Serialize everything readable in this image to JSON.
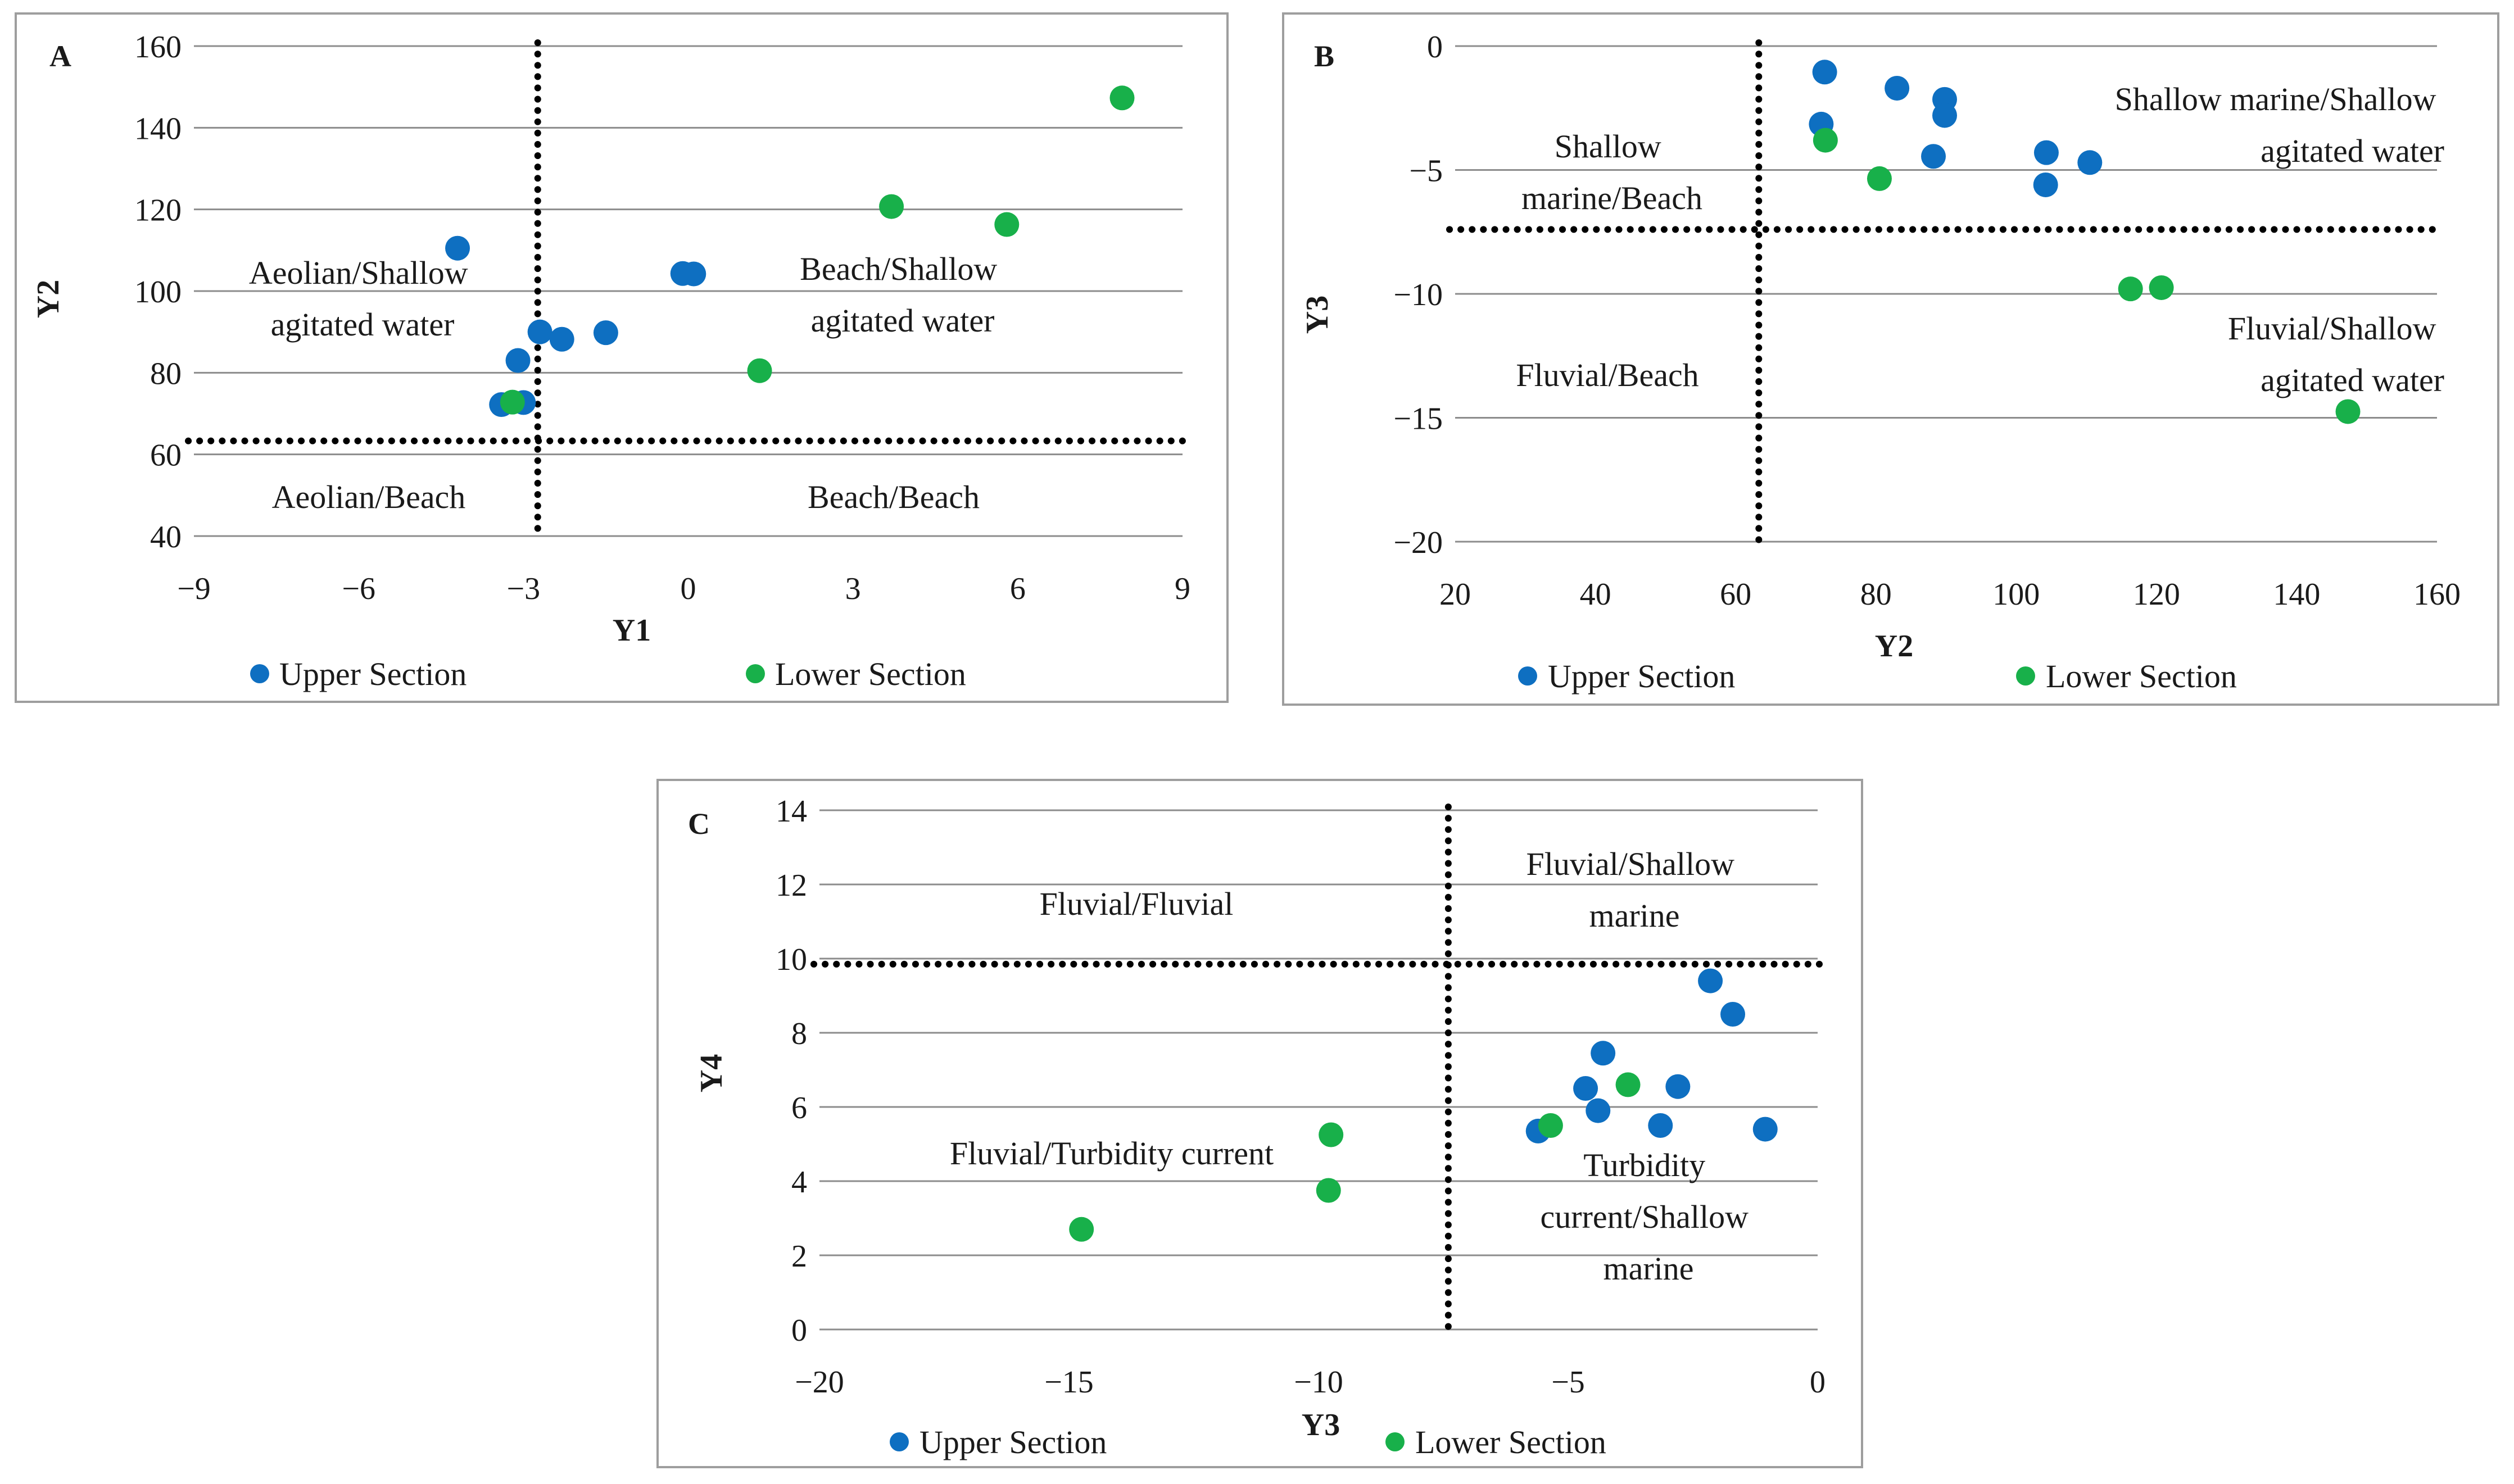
{
  "colors": {
    "upper": "#0E6FC1",
    "lower": "#18B04A",
    "grid": "#8C8C8C",
    "frame": "#9E9E9E",
    "divider": "#000000",
    "text": "#1a1a1a"
  },
  "chart_data": [
    {
      "id": "A",
      "panel_label": "A",
      "type": "scatter",
      "xlabel": "Y1",
      "ylabel": "Y2",
      "xlim": [
        -9,
        9
      ],
      "ylim": [
        40,
        160
      ],
      "xticks": [
        -9,
        -6,
        -3,
        0,
        3,
        6,
        9
      ],
      "yticks": [
        40,
        60,
        80,
        100,
        120,
        140,
        160
      ],
      "xtick_labels": [
        "−9",
        "−6",
        "−3",
        "0",
        "3",
        "6",
        "9"
      ],
      "ytick_labels": [
        "40",
        "60",
        "80",
        "100",
        "120",
        "140",
        "160"
      ],
      "grid": "horizontal",
      "dividers": {
        "x": -2.74,
        "y": 63.3
      },
      "series": [
        {
          "name": "Upper Section",
          "color_key": "upper",
          "points": [
            [
              -4.2,
              110.5
            ],
            [
              -3.1,
              83
            ],
            [
              -3.4,
              72.2
            ],
            [
              -3.0,
              72.7
            ],
            [
              -2.7,
              90
            ],
            [
              -2.3,
              88.2
            ],
            [
              -1.5,
              89.8
            ],
            [
              -0.1,
              104.3
            ],
            [
              0.1,
              104.2
            ]
          ]
        },
        {
          "name": "Lower Section",
          "color_key": "lower",
          "points": [
            [
              -3.2,
              72.8
            ],
            [
              1.3,
              80.5
            ],
            [
              3.7,
              120.7
            ],
            [
              5.8,
              116.3
            ],
            [
              7.9,
              147.3
            ]
          ]
        }
      ],
      "region_labels": [
        {
          "lines": [
            "Aeolian/Shallow",
            "agitated water"
          ]
        },
        {
          "lines": [
            "Beach/Shallow",
            "agitated water"
          ]
        },
        {
          "lines": [
            "Aeolian/Beach"
          ]
        },
        {
          "lines": [
            "Beach/Beach"
          ]
        }
      ],
      "legend": {
        "placement": "bottom",
        "entries": [
          "Upper Section",
          "Lower Section"
        ]
      }
    },
    {
      "id": "B",
      "panel_label": "B",
      "type": "scatter",
      "xlabel": "Y2",
      "ylabel": "Y3",
      "xlim": [
        20,
        160
      ],
      "ylim": [
        -20,
        0
      ],
      "xticks": [
        20,
        40,
        60,
        80,
        100,
        120,
        140,
        160
      ],
      "yticks": [
        -20,
        -15,
        -10,
        -5,
        0
      ],
      "xtick_labels": [
        "20",
        "40",
        "60",
        "80",
        "100",
        "120",
        "140",
        "160"
      ],
      "ytick_labels": [
        "−20",
        "−15",
        "−10",
        "−5",
        "0"
      ],
      "grid": "horizontal",
      "dividers": {
        "x": 63.3,
        "y": -7.4
      },
      "series": [
        {
          "name": "Upper Section",
          "color_key": "upper",
          "points": [
            [
              72.7,
              -1.05
            ],
            [
              72.2,
              -3.15
            ],
            [
              83,
              -1.7
            ],
            [
              89.8,
              -2.15
            ],
            [
              89.8,
              -2.8
            ],
            [
              88.2,
              -4.45
            ],
            [
              104.3,
              -4.3
            ],
            [
              104.2,
              -5.6
            ],
            [
              110.5,
              -4.7
            ]
          ]
        },
        {
          "name": "Lower Section",
          "color_key": "lower",
          "points": [
            [
              72.8,
              -3.8
            ],
            [
              80.5,
              -5.35
            ],
            [
              116.3,
              -9.8
            ],
            [
              120.7,
              -9.75
            ],
            [
              147.3,
              -14.75
            ]
          ]
        }
      ],
      "region_labels": [
        {
          "lines": [
            "Shallow",
            "marine/Beach"
          ]
        },
        {
          "lines": [
            "Shallow marine/Shallow",
            "agitated water"
          ]
        },
        {
          "lines": [
            "Fluvial/Beach"
          ]
        },
        {
          "lines": [
            "Fluvial/Shallow",
            "agitated water"
          ]
        }
      ],
      "legend": {
        "placement": "bottom",
        "entries": [
          "Upper Section",
          "Lower Section"
        ]
      }
    },
    {
      "id": "C",
      "panel_label": "C",
      "type": "scatter",
      "xlabel": "Y3",
      "ylabel": "Y4",
      "xlim": [
        -20,
        0
      ],
      "ylim": [
        0,
        14
      ],
      "xticks": [
        -20,
        -15,
        -10,
        -5,
        0
      ],
      "yticks": [
        0,
        2,
        4,
        6,
        8,
        10,
        12,
        14
      ],
      "xtick_labels": [
        "−20",
        "−15",
        "−10",
        "−5",
        "0"
      ],
      "ytick_labels": [
        "0",
        "2",
        "4",
        "6",
        "8",
        "10",
        "12",
        "14"
      ],
      "grid": "horizontal",
      "dividers": {
        "x": -7.4,
        "y": 9.85
      },
      "series": [
        {
          "name": "Upper Section",
          "color_key": "upper",
          "points": [
            [
              -2.15,
              9.4
            ],
            [
              -1.7,
              8.5
            ],
            [
              -4.3,
              7.45
            ],
            [
              -4.65,
              6.5
            ],
            [
              -2.8,
              6.55
            ],
            [
              -4.4,
              5.9
            ],
            [
              -3.15,
              5.5
            ],
            [
              -5.6,
              5.35
            ],
            [
              -1.05,
              5.4
            ]
          ]
        },
        {
          "name": "Lower Section",
          "color_key": "lower",
          "points": [
            [
              -3.8,
              6.6
            ],
            [
              -5.35,
              5.5
            ],
            [
              -9.75,
              5.25
            ],
            [
              -9.8,
              3.75
            ],
            [
              -14.75,
              2.7
            ]
          ]
        }
      ],
      "region_labels": [
        {
          "lines": [
            "Fluvial/Fluvial"
          ]
        },
        {
          "lines": [
            "Fluvial/Shallow",
            "marine"
          ]
        },
        {
          "lines": [
            "Fluvial/Turbidity current"
          ]
        },
        {
          "lines": [
            "Turbidity",
            "current/Shallow",
            "marine"
          ]
        }
      ],
      "legend": {
        "placement": "bottom",
        "entries": [
          "Upper Section",
          "Lower Section"
        ]
      }
    }
  ]
}
